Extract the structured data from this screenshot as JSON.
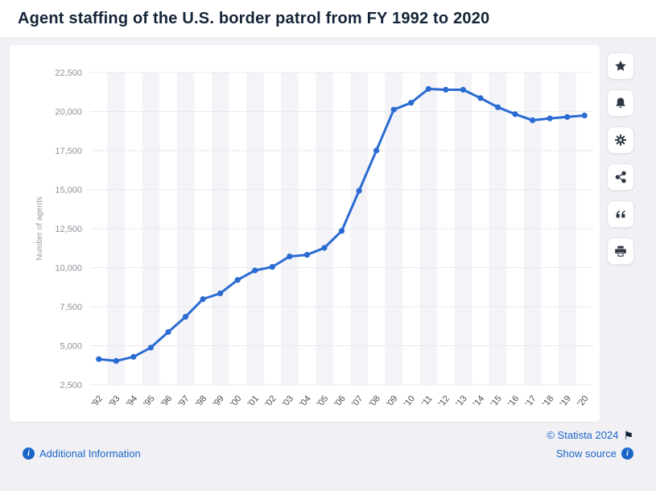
{
  "page": {
    "title": "Agent staffing of the U.S. border patrol from FY 1992 to 2020"
  },
  "chart_data": {
    "type": "line",
    "title": "Agent staffing of the U.S. border patrol from FY 1992 to 2020",
    "xlabel": "",
    "ylabel": "Number of agents",
    "ylim": [
      2500,
      22500
    ],
    "ytick_step": 2500,
    "grid": true,
    "legend": "none",
    "categories": [
      "'92",
      "'93",
      "'94",
      "'95",
      "'96",
      "'97",
      "'98",
      "'99",
      "'00",
      "'01",
      "'02",
      "'03",
      "'04",
      "'05",
      "'06",
      "'07",
      "'08",
      "'09",
      "'10",
      "'11",
      "'12",
      "'13",
      "'14",
      "'15",
      "'16",
      "'17",
      "'18",
      "'19",
      "'20"
    ],
    "series": [
      {
        "name": "Number of agents",
        "values": [
          4139,
          4028,
          4287,
          4881,
          5878,
          6848,
          7982,
          8351,
          9212,
          9821,
          10045,
          10717,
          10819,
          11264,
          12349,
          14923,
          17499,
          20119,
          20558,
          21444,
          21394,
          21391,
          20863,
          20273,
          19828,
          19437,
          19555,
          19648,
          19740
        ]
      }
    ],
    "line_color": "#2a6bd2",
    "marker_color": "#2a6bd2",
    "band_color": "#f4f4f8",
    "grid_color": "#e9e9ef"
  },
  "toolbar": {
    "buttons": [
      {
        "id": "favorite",
        "icon": "star-icon"
      },
      {
        "id": "alerts",
        "icon": "bell-icon"
      },
      {
        "id": "settings",
        "icon": "gear-icon"
      },
      {
        "id": "share",
        "icon": "share-icon"
      },
      {
        "id": "cite",
        "icon": "quote-icon"
      },
      {
        "id": "print",
        "icon": "print-icon"
      }
    ]
  },
  "footer": {
    "copyright": "© Statista 2024",
    "additional_information": "Additional Information",
    "show_source": "Show source",
    "info_icon_glyph": "i",
    "flag_glyph": "⚑"
  },
  "colors": {
    "accent_blue": "#1a66c8",
    "title_navy": "#152438",
    "icon_dark": "#2e3744"
  }
}
